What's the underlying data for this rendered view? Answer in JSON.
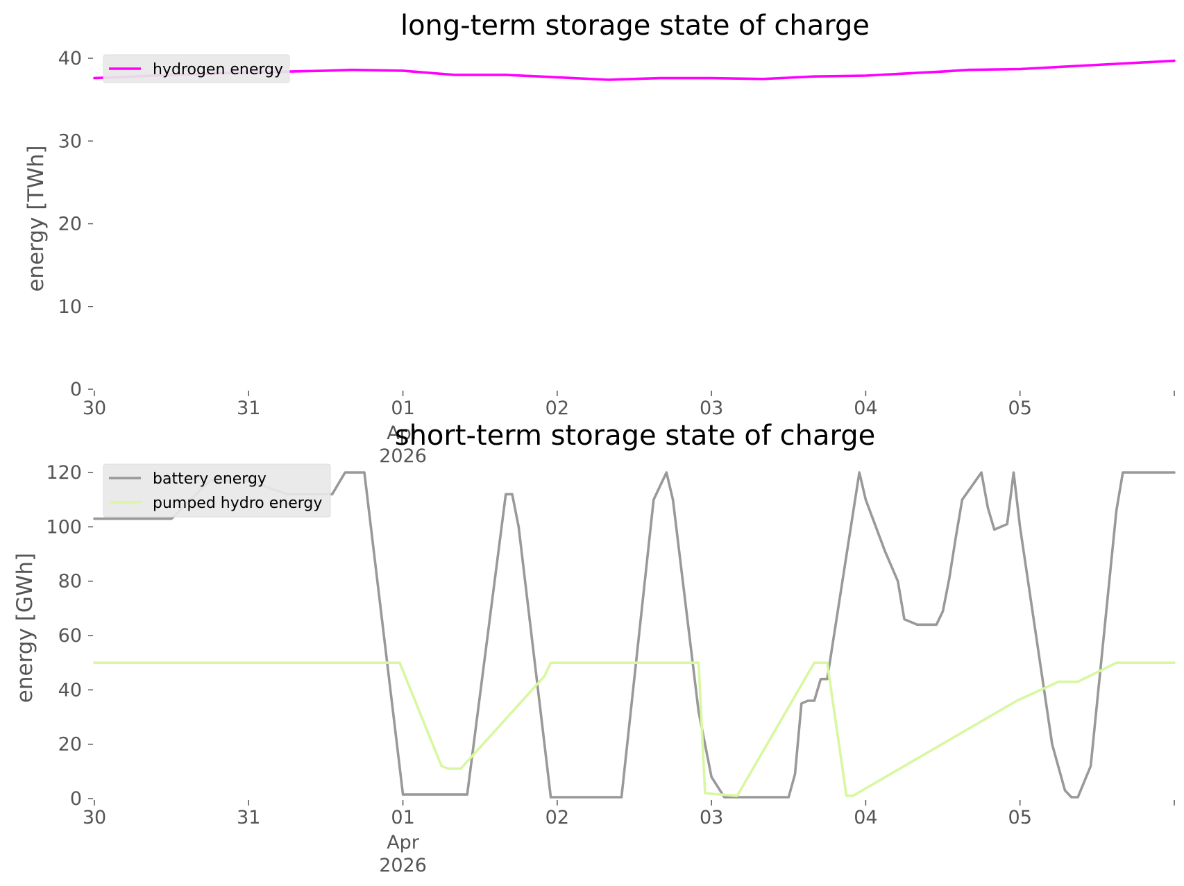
{
  "colors": {
    "hydrogen": "#ff00ff",
    "battery": "#999999",
    "pumped_hydro": "#d9f7a1",
    "tick_text": "#555555",
    "legend_bg": "#e8e8e8"
  },
  "chart_data": [
    {
      "type": "line",
      "title": "long-term storage state of charge",
      "ylabel": "energy [TWh]",
      "xlabel": "",
      "ylim": [
        0,
        40
      ],
      "yticks": [
        "0",
        "10",
        "20",
        "30",
        "40"
      ],
      "xlim": [
        "2026-03-30",
        "2026-04-06"
      ],
      "xticks": [
        {
          "label": "30",
          "date": "2026-03-30"
        },
        {
          "label": "31",
          "date": "2026-03-31"
        },
        {
          "label": "01",
          "date": "2026-04-01",
          "sub": [
            "Apr",
            "2026"
          ]
        },
        {
          "label": "02",
          "date": "2026-04-02"
        },
        {
          "label": "03",
          "date": "2026-04-03"
        },
        {
          "label": "04",
          "date": "2026-04-04"
        },
        {
          "label": "05",
          "date": "2026-04-05"
        },
        {
          "label": "",
          "date": "2026-04-06"
        }
      ],
      "grid": false,
      "legend_position": "top-left",
      "series": [
        {
          "name": "hydrogen energy",
          "x": [
            "2026-03-30 00:00",
            "2026-03-30 12:00",
            "2026-03-31 00:00",
            "2026-03-31 12:00",
            "2026-03-31 16:00",
            "2026-04-01 00:00",
            "2026-04-01 08:00",
            "2026-04-01 16:00",
            "2026-04-02 00:00",
            "2026-04-02 08:00",
            "2026-04-02 16:00",
            "2026-04-03 00:00",
            "2026-04-03 08:00",
            "2026-04-03 16:00",
            "2026-04-04 00:00",
            "2026-04-04 12:00",
            "2026-04-04 16:00",
            "2026-04-05 00:00",
            "2026-04-05 12:00",
            "2026-04-06 00:00"
          ],
          "y": [
            37.6,
            38.0,
            38.3,
            38.5,
            38.6,
            38.5,
            38.0,
            38.0,
            37.7,
            37.4,
            37.6,
            37.6,
            37.5,
            37.8,
            37.9,
            38.4,
            38.6,
            38.7,
            39.2,
            39.7
          ]
        }
      ]
    },
    {
      "type": "line",
      "title": "short-term storage state of charge",
      "ylabel": "energy [GWh]",
      "xlabel": "",
      "ylim": [
        0,
        120
      ],
      "yticks": [
        "0",
        "20",
        "40",
        "60",
        "80",
        "100",
        "120"
      ],
      "xlim": [
        "2026-03-30",
        "2026-04-06"
      ],
      "xticks": [
        {
          "label": "30",
          "date": "2026-03-30"
        },
        {
          "label": "31",
          "date": "2026-03-31"
        },
        {
          "label": "01",
          "date": "2026-04-01",
          "sub": [
            "Apr",
            "2026"
          ]
        },
        {
          "label": "02",
          "date": "2026-04-02"
        },
        {
          "label": "03",
          "date": "2026-04-03"
        },
        {
          "label": "04",
          "date": "2026-04-04"
        },
        {
          "label": "05",
          "date": "2026-04-05"
        },
        {
          "label": "",
          "date": "2026-04-06"
        }
      ],
      "grid": false,
      "legend_position": "top-left",
      "series": [
        {
          "name": "battery energy",
          "x": [
            "2026-03-30 00:00",
            "2026-03-30 12:00",
            "2026-03-30 18:00",
            "2026-03-31 00:00",
            "2026-03-31 06:00",
            "2026-03-31 13:00",
            "2026-03-31 15:00",
            "2026-03-31 18:00",
            "2026-04-01 00:00",
            "2026-04-01 10:00",
            "2026-04-01 16:00",
            "2026-04-01 17:00",
            "2026-04-01 18:00",
            "2026-04-01 23:00",
            "2026-04-02 10:00",
            "2026-04-02 15:00",
            "2026-04-02 17:00",
            "2026-04-02 18:00",
            "2026-04-02 22:00",
            "2026-04-03 00:00",
            "2026-04-03 02:00",
            "2026-04-03 12:00",
            "2026-04-03 13:00",
            "2026-04-03 14:00",
            "2026-04-03 15:00",
            "2026-04-03 16:00",
            "2026-04-03 17:00",
            "2026-04-03 18:00",
            "2026-04-03 23:00",
            "2026-04-04 00:00",
            "2026-04-04 03:00",
            "2026-04-04 05:00",
            "2026-04-04 06:00",
            "2026-04-04 08:00",
            "2026-04-04 09:00",
            "2026-04-04 11:00",
            "2026-04-04 12:00",
            "2026-04-04 13:00",
            "2026-04-04 14:00",
            "2026-04-04 15:00",
            "2026-04-04 18:00",
            "2026-04-04 19:00",
            "2026-04-04 20:00",
            "2026-04-04 22:00",
            "2026-04-04 23:00",
            "2026-04-05 00:00",
            "2026-04-05 05:00",
            "2026-04-05 07:00",
            "2026-04-05 08:00",
            "2026-04-05 09:00",
            "2026-04-05 11:00",
            "2026-04-05 15:00",
            "2026-04-05 16:00",
            "2026-04-06 00:00"
          ],
          "y": [
            103,
            103,
            117,
            117,
            112,
            112,
            120,
            120,
            1.5,
            1.5,
            112,
            112,
            100,
            0.5,
            0.5,
            110,
            120,
            110,
            32,
            8,
            0.5,
            0.5,
            9,
            35,
            36,
            36,
            44,
            44,
            120,
            110,
            91,
            80,
            66,
            64,
            64,
            64,
            69,
            81,
            96,
            110,
            120,
            107,
            99,
            101,
            120,
            100,
            20,
            3,
            0.5,
            0.5,
            12,
            106,
            120,
            120
          ]
        },
        {
          "name": "pumped hydro energy",
          "x": [
            "2026-03-30 00:00",
            "2026-03-31 23:30",
            "2026-04-01 06:00",
            "2026-04-01 07:00",
            "2026-04-01 09:00",
            "2026-04-01 22:00",
            "2026-04-01 23:00",
            "2026-04-02 22:00",
            "2026-04-02 23:00",
            "2026-04-03 04:00",
            "2026-04-03 16:00",
            "2026-04-03 18:00",
            "2026-04-03 21:00",
            "2026-04-03 22:00",
            "2026-04-04 23:30",
            "2026-04-05 06:00",
            "2026-04-05 07:00",
            "2026-04-05 09:00",
            "2026-04-05 15:00",
            "2026-04-06 00:00"
          ],
          "y": [
            50,
            50,
            12,
            11,
            11,
            45,
            50,
            50,
            2,
            1,
            50,
            50,
            1,
            1,
            36,
            43,
            43,
            43,
            50,
            50
          ]
        }
      ]
    }
  ]
}
